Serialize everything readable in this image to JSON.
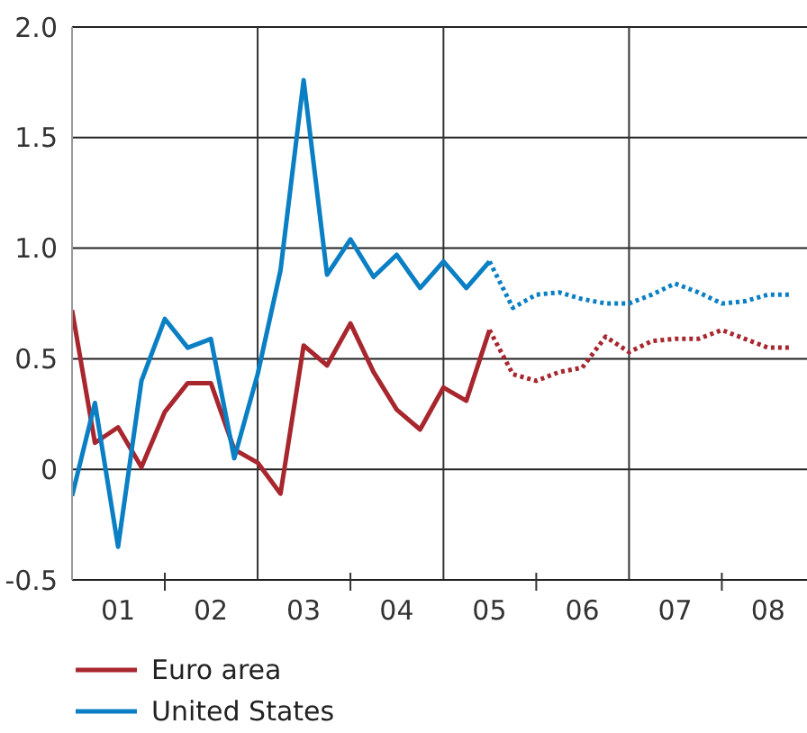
{
  "chart_data": {
    "type": "line",
    "x": [
      "2001-01",
      "2001-04",
      "2001-07",
      "2001-10",
      "2002-01",
      "2002-04",
      "2002-07",
      "2002-10",
      "2003-01",
      "2003-04",
      "2003-07",
      "2003-10",
      "2004-01",
      "2004-04",
      "2004-07",
      "2004-10",
      "2005-01",
      "2005-04",
      "2005-07",
      "2005-10",
      "2006-01",
      "2006-04",
      "2006-07",
      "2006-10",
      "2007-01",
      "2007-04",
      "2007-07",
      "2007-10",
      "2008-01",
      "2008-04",
      "2008-07",
      "2008-10"
    ],
    "xlim": [
      "2001-01",
      "2008-12"
    ],
    "xticks": [
      {
        "value": "2001-07",
        "label": "01"
      },
      {
        "value": "2002-01",
        "label": null
      },
      {
        "value": "2002-07",
        "label": "02"
      },
      {
        "value": "2003-07",
        "label": "03"
      },
      {
        "value": "2004-01",
        "label": null
      },
      {
        "value": "2004-07",
        "label": "04"
      },
      {
        "value": "2005-07",
        "label": "05"
      },
      {
        "value": "2006-01",
        "label": null
      },
      {
        "value": "2006-07",
        "label": "06"
      },
      {
        "value": "2007-07",
        "label": "07"
      },
      {
        "value": "2008-01",
        "label": null
      },
      {
        "value": "2008-07",
        "label": "08"
      }
    ],
    "ylim": [
      -0.5,
      2
    ],
    "yticks": [
      {
        "value": -0.5,
        "label": "-0.5"
      },
      {
        "value": 0,
        "label": "0"
      },
      {
        "value": 0.5,
        "label": "0.5"
      },
      {
        "value": 1,
        "label": "1.0"
      },
      {
        "value": 1.5,
        "label": "1.5"
      },
      {
        "value": 2,
        "label": "2.0"
      }
    ],
    "grid": "y",
    "legend": "bottom",
    "marker": "none",
    "ref_lines": [
      {
        "axis": "x",
        "value": "2003-01",
        "color": "#333333"
      },
      {
        "axis": "x",
        "value": "2005-01",
        "color": "#333333"
      },
      {
        "axis": "x",
        "value": "2007-01",
        "color": "#333333"
      }
    ],
    "series": [
      {
        "name": "Euro area",
        "color": "#a8262e",
        "line_style": "solid",
        "values": [
          0.72,
          0.12,
          0.19,
          0.01,
          0.26,
          0.39,
          0.39,
          0.09,
          0.03,
          -0.11,
          0.56,
          0.47,
          0.66,
          0.44,
          0.27,
          0.18,
          0.37,
          0.31,
          0.63,
          null,
          null,
          null,
          null,
          null,
          null,
          null,
          null,
          null,
          null,
          null,
          null,
          null
        ]
      },
      {
        "name": "United States",
        "color": "#0a7fc4",
        "line_style": "solid",
        "values": [
          -0.12,
          0.3,
          -0.35,
          0.4,
          0.68,
          0.55,
          0.59,
          0.05,
          0.43,
          0.9,
          1.76,
          0.88,
          1.04,
          0.87,
          0.97,
          0.82,
          0.94,
          0.82,
          0.94,
          null,
          null,
          null,
          null,
          null,
          null,
          null,
          null,
          null,
          null,
          null,
          null,
          null
        ]
      },
      {
        "color": "#a8262e",
        "line_style": "dotted",
        "values": [
          null,
          null,
          null,
          null,
          null,
          null,
          null,
          null,
          null,
          null,
          null,
          null,
          null,
          null,
          null,
          null,
          null,
          null,
          0.63,
          0.43,
          0.4,
          0.44,
          0.46,
          0.6,
          0.53,
          0.58,
          0.59,
          0.59,
          0.63,
          0.59,
          0.55,
          0.55
        ]
      },
      {
        "color": "#0a7fc4",
        "line_style": "dotted",
        "values": [
          null,
          null,
          null,
          null,
          null,
          null,
          null,
          null,
          null,
          null,
          null,
          null,
          null,
          null,
          null,
          null,
          null,
          null,
          0.94,
          0.73,
          0.79,
          0.8,
          0.77,
          0.75,
          0.75,
          0.79,
          0.84,
          0.8,
          0.75,
          0.76,
          0.79,
          0.79
        ]
      }
    ]
  }
}
